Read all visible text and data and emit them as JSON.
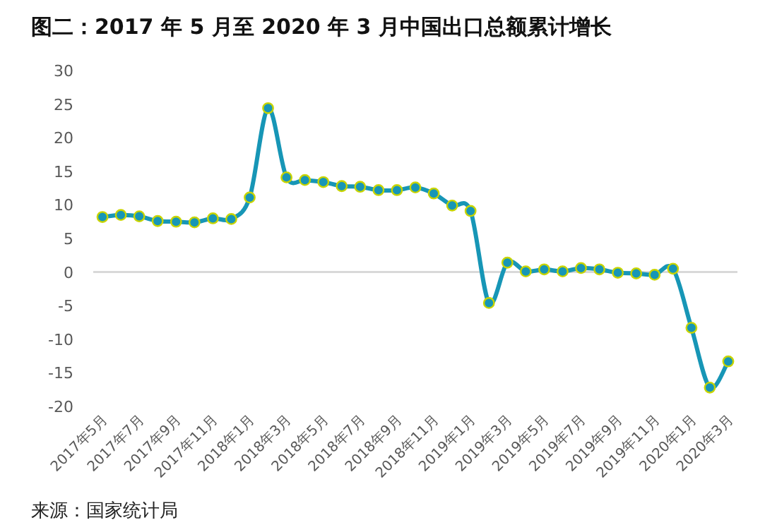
{
  "chart_data": {
    "type": "line",
    "title": "图二：2017 年 5 月至 2020 年 3 月中国出口总额累计增长",
    "categories": [
      "2017年5月",
      null,
      "2017年7月",
      null,
      "2017年9月",
      null,
      "2017年11月",
      null,
      "2018年1月",
      null,
      "2018年3月",
      null,
      "2018年5月",
      null,
      "2018年7月",
      null,
      "2018年9月",
      null,
      "2018年11月",
      null,
      "2019年1月",
      null,
      "2019年3月",
      null,
      "2019年5月",
      null,
      "2019年7月",
      null,
      "2019年9月",
      null,
      "2019年11月",
      null,
      "2020年1月",
      null,
      "2020年3月"
    ],
    "series": [
      {
        "color": "#1796b6",
        "values": [
          8.2,
          8.5,
          8.3,
          7.6,
          7.5,
          7.4,
          8.0,
          7.9,
          11.1,
          24.4,
          14.1,
          13.7,
          13.4,
          12.8,
          12.7,
          12.2,
          12.2,
          12.6,
          11.7,
          9.9,
          9.1,
          -4.6,
          1.4,
          0.1,
          0.4,
          0.1,
          0.6,
          0.4,
          -0.1,
          -0.2,
          -0.4,
          0.5,
          -8.3,
          -17.2,
          -13.3
        ]
      }
    ],
    "ylim": [
      -20,
      30
    ],
    "yticks": [
      -20,
      -15,
      -10,
      -5,
      0,
      5,
      10,
      15,
      20,
      25,
      30
    ],
    "marker": "circle",
    "annotations": [
      "来源：国家统计局"
    ]
  }
}
